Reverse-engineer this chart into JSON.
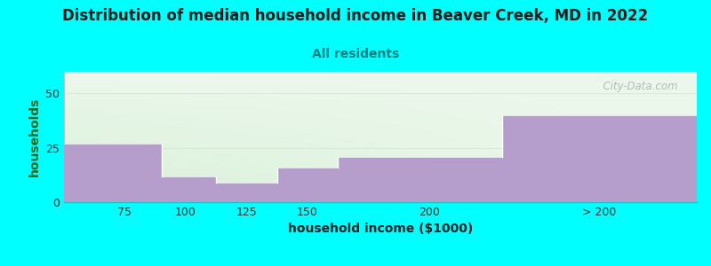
{
  "title": "Distribution of median household income in Beaver Creek, MD in 2022",
  "subtitle": "All residents",
  "xlabel": "household income ($1000)",
  "ylabel": "households",
  "bg_color": "#00FFFF",
  "bar_color": "#b59dcc",
  "title_color": "#1a1a1a",
  "subtitle_color": "#008080",
  "xlabel_color": "#222222",
  "ylabel_color": "#226622",
  "watermark": "  City-Data.com",
  "values": [
    27,
    12,
    9,
    16,
    21,
    40
  ],
  "ylim": [
    0,
    60
  ],
  "yticks": [
    0,
    25,
    50
  ],
  "xlim_left": 50,
  "xlim_right": 310,
  "bar_edges": [
    50,
    90,
    112.5,
    137.5,
    162.5,
    230,
    310
  ],
  "xtick_positions": [
    75,
    100,
    125,
    150,
    200,
    270
  ],
  "xtick_labels": [
    "75",
    "100",
    "125",
    "150",
    "200",
    "> 200"
  ]
}
